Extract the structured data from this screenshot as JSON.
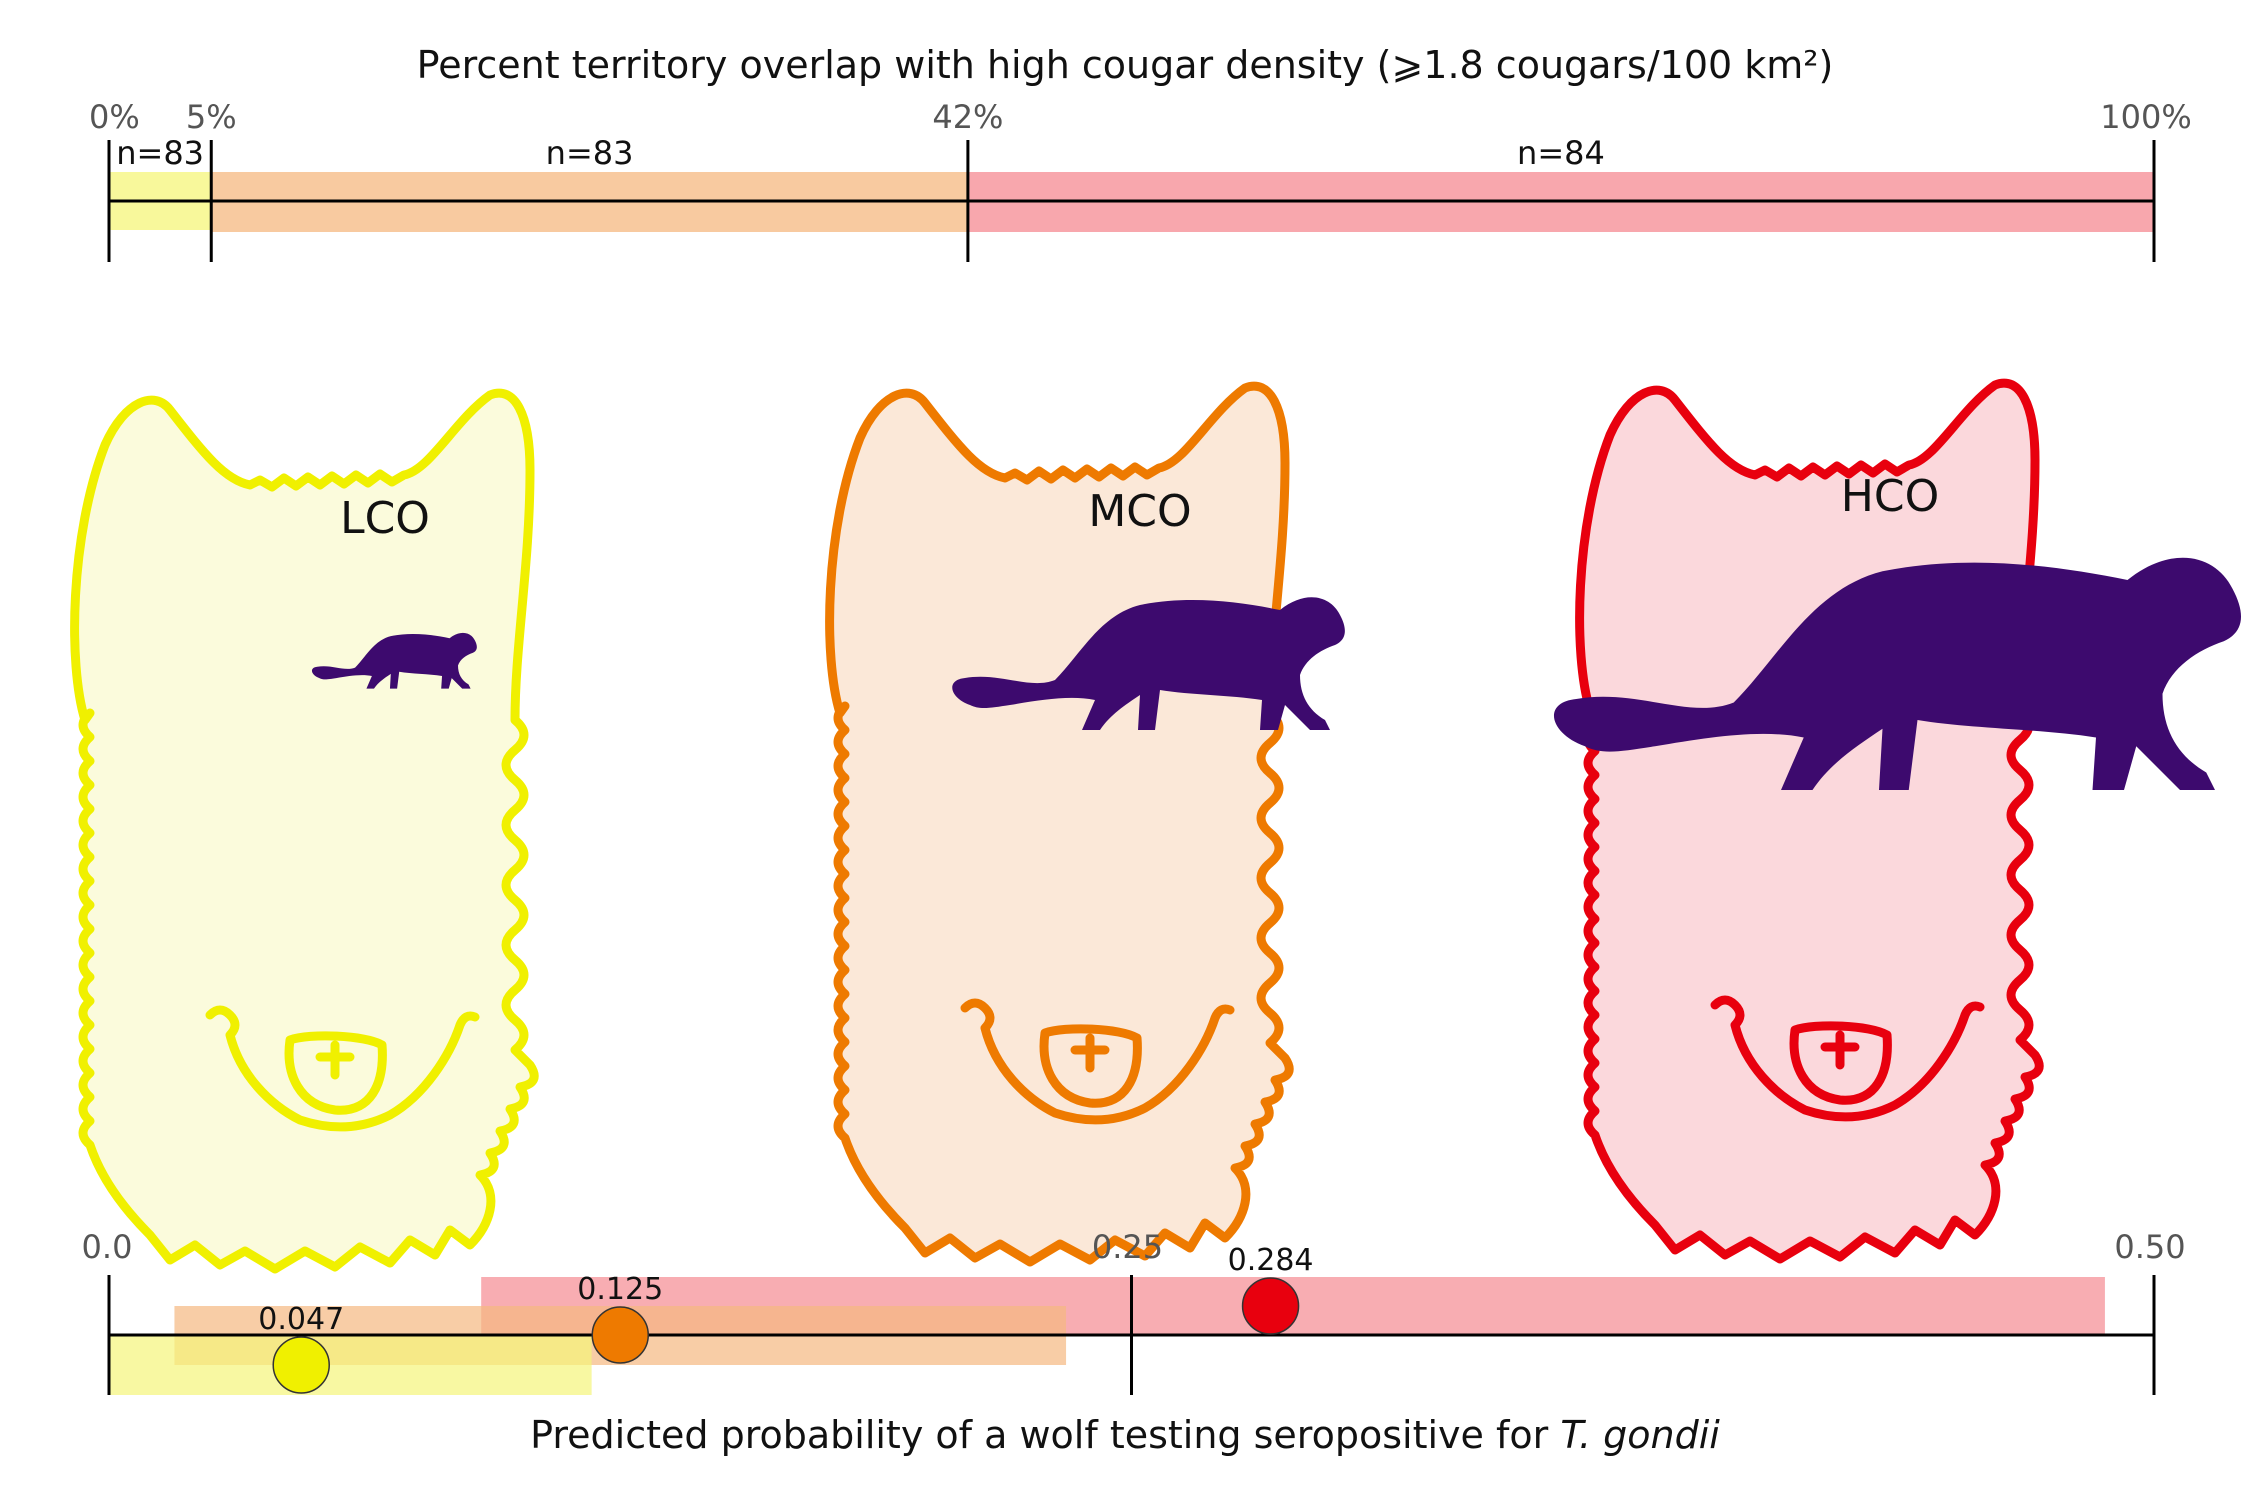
{
  "colors": {
    "low": "#f0f000",
    "medium": "#ee7a00",
    "high": "#e8000e",
    "cougar": "#3d0a6e"
  },
  "top_axis": {
    "title": "Percent territory overlap with high cougar density (⩾1.8 cougars/100 km²)",
    "ticks": [
      {
        "value": 0,
        "label": "0%"
      },
      {
        "value": 5,
        "label": "5%"
      },
      {
        "value": 42,
        "label": "42%"
      },
      {
        "value": 100,
        "label": "100%"
      }
    ],
    "segments": [
      {
        "group": "low",
        "from": 0,
        "to": 5,
        "n_label": "n=83"
      },
      {
        "group": "medium",
        "from": 5,
        "to": 42,
        "n_label": "n=83"
      },
      {
        "group": "high",
        "from": 42,
        "to": 100,
        "n_label": "n=84"
      }
    ]
  },
  "wolves": [
    {
      "group": "low",
      "label": "LCO",
      "cougar_scale": 0.42
    },
    {
      "group": "medium",
      "label": "MCO",
      "cougar_scale": 1.0
    },
    {
      "group": "high",
      "label": "HCO",
      "cougar_scale": 1.75
    }
  ],
  "bottom_axis": {
    "title_plain": "Predicted probability of a wolf testing seropositive for ",
    "title_italic": "T. gondii",
    "ticks": [
      {
        "value": 0.0,
        "label": "0.0"
      },
      {
        "value": 0.25,
        "label": "0.25"
      },
      {
        "value": 0.5,
        "label": "0.50"
      }
    ],
    "estimates": [
      {
        "group": "low",
        "estimate": 0.047,
        "label": "0.047",
        "ci_low": 0.0,
        "ci_high": 0.118
      },
      {
        "group": "medium",
        "estimate": 0.125,
        "label": "0.125",
        "ci_low": 0.016,
        "ci_high": 0.234
      },
      {
        "group": "high",
        "estimate": 0.284,
        "label": "0.284",
        "ci_low": 0.091,
        "ci_high": 0.488
      }
    ]
  }
}
